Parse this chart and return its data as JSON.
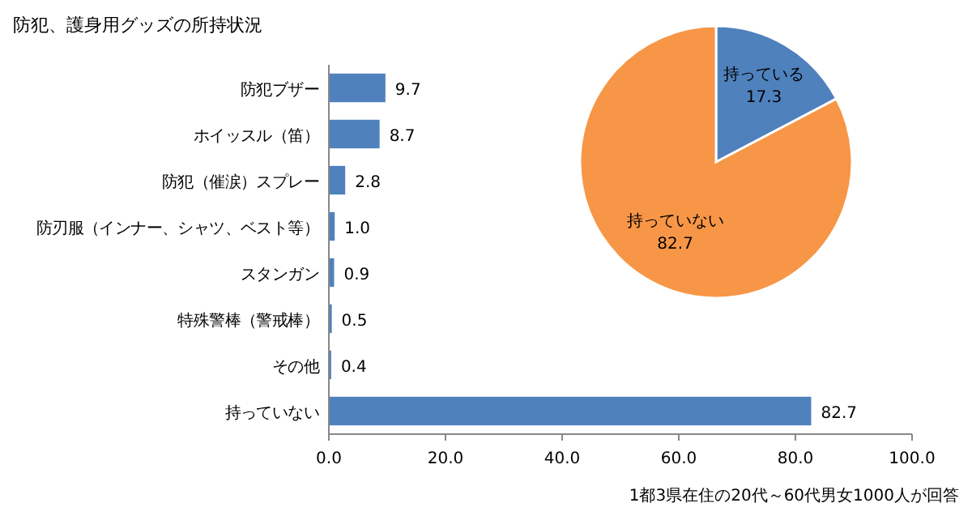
{
  "chart_data": [
    {
      "type": "bar",
      "orientation": "horizontal",
      "title": "防犯、護身用グッズの所持状況",
      "categories": [
        "防犯ブザー",
        "ホイッスル（笛）",
        "防犯（催涙）スプレー",
        "防刃服（インナー、シャツ、ベスト等）",
        "スタンガン",
        "特殊警棒（警戒棒）",
        "その他",
        "持っていない"
      ],
      "values": [
        9.7,
        8.7,
        2.8,
        1.0,
        0.9,
        0.5,
        0.4,
        82.7
      ],
      "color": "#4f81bd",
      "xlim": [
        0,
        100
      ],
      "xticks": [
        {
          "value": 0,
          "label": "0.0"
        },
        {
          "value": 20,
          "label": "20.0"
        },
        {
          "value": 40,
          "label": "40.0"
        },
        {
          "value": 60,
          "label": "60.0"
        },
        {
          "value": 80,
          "label": "80.0"
        },
        {
          "value": 100,
          "label": "100.0"
        }
      ],
      "value_labels": [
        "9.7",
        "8.7",
        "2.8",
        "1.0",
        "0.9",
        "0.5",
        "0.4",
        "82.7"
      ],
      "annotations": [
        "1都3県在住の20代～60代男女1000人が回答"
      ]
    },
    {
      "type": "pie",
      "categories": [
        "持っている",
        "持っていない"
      ],
      "values": [
        17.3,
        82.7
      ],
      "colors": [
        "#4f81bd",
        "#f79646"
      ],
      "data_labels": true
    }
  ]
}
